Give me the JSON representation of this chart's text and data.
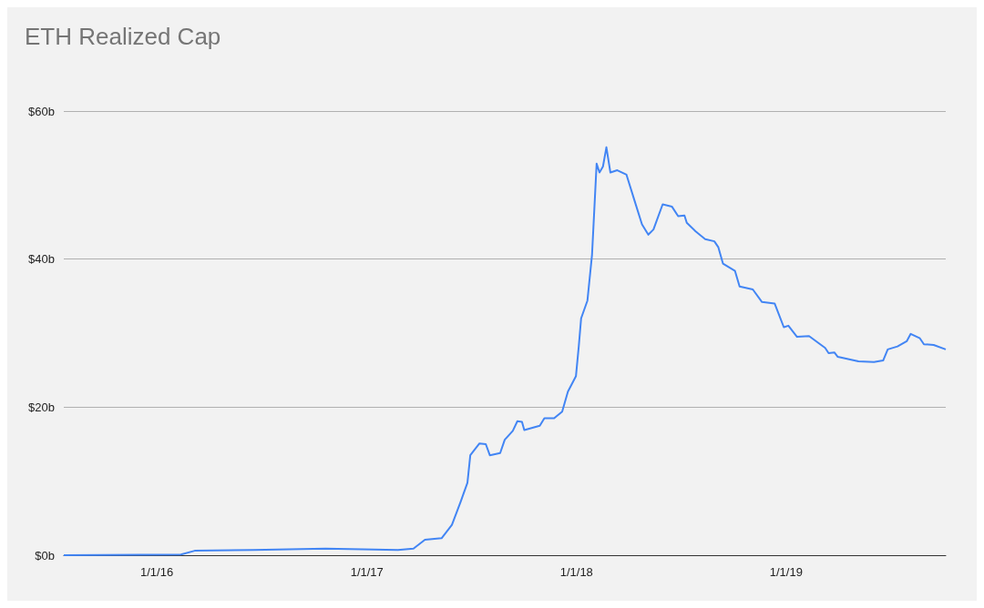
{
  "chart_data": {
    "type": "line",
    "title": "ETH Realized Cap",
    "color": "#4285f4",
    "grid": "y",
    "x": [
      "2015-07-23",
      "2016-02-12",
      "2016-03-07",
      "2016-06-17",
      "2016-10-21",
      "2017-02-24",
      "2017-03-23",
      "2017-04-12",
      "2017-05-11",
      "2017-05-29",
      "2017-06-14",
      "2017-06-25",
      "2017-06-30",
      "2017-07-16",
      "2017-07-27",
      "2017-08-03",
      "2017-08-21",
      "2017-08-29",
      "2017-09-12",
      "2017-09-20",
      "2017-09-28",
      "2017-10-02",
      "2017-10-29",
      "2017-11-06",
      "2017-11-23",
      "2017-12-07",
      "2017-12-17",
      "2017-12-31",
      "2018-01-05",
      "2018-01-09",
      "2018-01-20",
      "2018-01-28",
      "2018-02-05",
      "2018-02-10",
      "2018-02-16",
      "2018-02-22",
      "2018-03-01",
      "2018-03-13",
      "2018-03-29",
      "2018-04-12",
      "2018-04-25",
      "2018-05-06",
      "2018-05-15",
      "2018-05-31",
      "2018-06-16",
      "2018-06-27",
      "2018-07-08",
      "2018-07-12",
      "2018-07-28",
      "2018-08-13",
      "2018-08-29",
      "2018-09-05",
      "2018-09-13",
      "2018-10-04",
      "2018-10-12",
      "2018-11-04",
      "2018-11-20",
      "2018-12-12",
      "2018-12-28",
      "2019-01-05",
      "2019-01-20",
      "2019-02-10",
      "2019-03-10",
      "2019-03-16",
      "2019-03-26",
      "2019-04-01",
      "2019-05-07",
      "2019-06-03",
      "2019-06-19",
      "2019-06-27",
      "2019-07-14",
      "2019-07-30",
      "2019-08-06",
      "2019-08-22",
      "2019-08-29",
      "2019-09-15",
      "2019-10-06"
    ],
    "values": [
      0,
      0.1,
      0.6,
      0.7,
      0.9,
      0.7,
      0.9,
      2.1,
      2.3,
      4.1,
      7.4,
      9.8,
      13.5,
      15.1,
      15.0,
      13.5,
      13.8,
      15.6,
      16.8,
      18.1,
      18.0,
      16.9,
      17.5,
      18.5,
      18.5,
      19.4,
      22.1,
      24.2,
      28.3,
      32.0,
      34.4,
      40.6,
      52.9,
      51.7,
      52.5,
      55.1,
      51.7,
      52.0,
      51.4,
      47.9,
      44.7,
      43.3,
      44.0,
      47.4,
      47.1,
      45.8,
      45.9,
      44.9,
      43.7,
      42.7,
      42.4,
      41.6,
      39.4,
      38.4,
      36.3,
      35.9,
      34.2,
      34.0,
      30.8,
      31.0,
      29.5,
      29.6,
      28.0,
      27.3,
      27.4,
      26.8,
      26.2,
      26.1,
      26.3,
      27.8,
      28.2,
      28.9,
      29.9,
      29.3,
      28.5,
      28.4,
      27.8
    ],
    "xlim": [
      "2015-07-23",
      "2019-10-06"
    ],
    "xticks": [
      {
        "value": "2016-01-01",
        "label": "1/1/16"
      },
      {
        "value": "2017-01-01",
        "label": "1/1/17"
      },
      {
        "value": "2018-01-01",
        "label": "1/1/18"
      },
      {
        "value": "2019-01-01",
        "label": "1/1/19"
      }
    ],
    "ylim": [
      0,
      60
    ],
    "yticks": [
      {
        "value": 0,
        "label": "$0b"
      },
      {
        "value": 20,
        "label": "$20b"
      },
      {
        "value": 40,
        "label": "$40b"
      },
      {
        "value": 60,
        "label": "$60b"
      }
    ]
  }
}
